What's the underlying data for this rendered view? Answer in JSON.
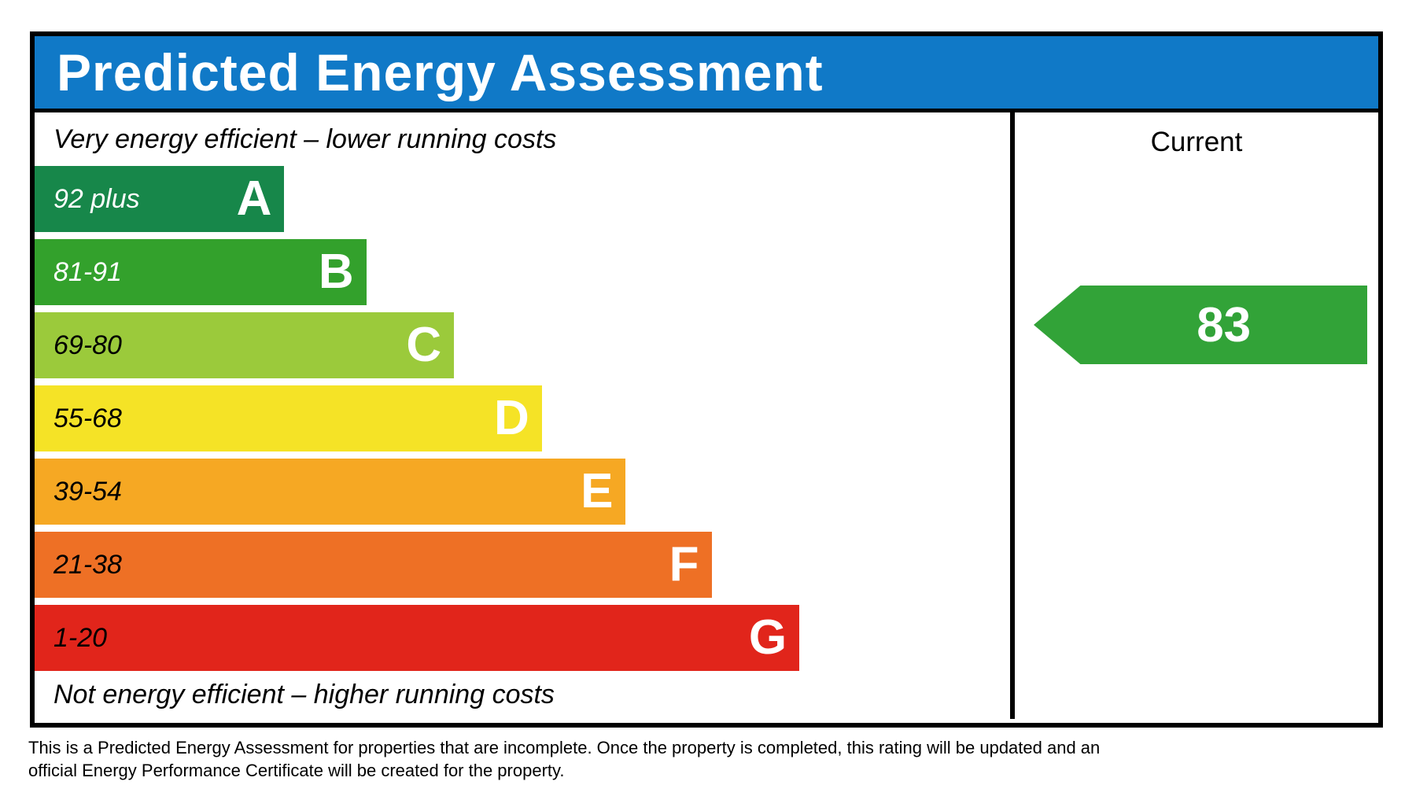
{
  "header": {
    "title": "Predicted Energy Assessment"
  },
  "captions": {
    "top": "Very energy efficient – lower running costs",
    "bottom": "Not energy efficient – higher running costs"
  },
  "current_column": {
    "label": "Current"
  },
  "chart_data": {
    "type": "bar",
    "title": "Predicted Energy Assessment",
    "bands": [
      {
        "letter": "A",
        "range": "92 plus",
        "color": "#17874a",
        "range_text_color": "#ffffff",
        "width_pct": 25.6
      },
      {
        "letter": "B",
        "range": "81-91",
        "color": "#33a12c",
        "range_text_color": "#ffffff",
        "width_pct": 34.0
      },
      {
        "letter": "C",
        "range": "69-80",
        "color": "#9bca3b",
        "range_text_color": "#000000",
        "width_pct": 43.0
      },
      {
        "letter": "D",
        "range": "55-68",
        "color": "#f5e326",
        "range_text_color": "#000000",
        "width_pct": 52.0
      },
      {
        "letter": "E",
        "range": "39-54",
        "color": "#f6a823",
        "range_text_color": "#000000",
        "width_pct": 60.6
      },
      {
        "letter": "F",
        "range": "21-38",
        "color": "#ee7025",
        "range_text_color": "#000000",
        "width_pct": 69.4
      },
      {
        "letter": "G",
        "range": "1-20",
        "color": "#e1251b",
        "range_text_color": "#000000",
        "width_pct": 78.4
      }
    ],
    "current": {
      "value": 83,
      "band": "B",
      "arrow_color": "#32a338"
    }
  },
  "footnote": {
    "lines": [
      "This is a Predicted Energy Assessment for properties that are incomplete. Once the property is completed, this rating will be updated and an",
      "official Energy Performance Certificate will be created for the property."
    ]
  },
  "colors": {
    "header_bg": "#1079c7",
    "border": "#000000"
  }
}
